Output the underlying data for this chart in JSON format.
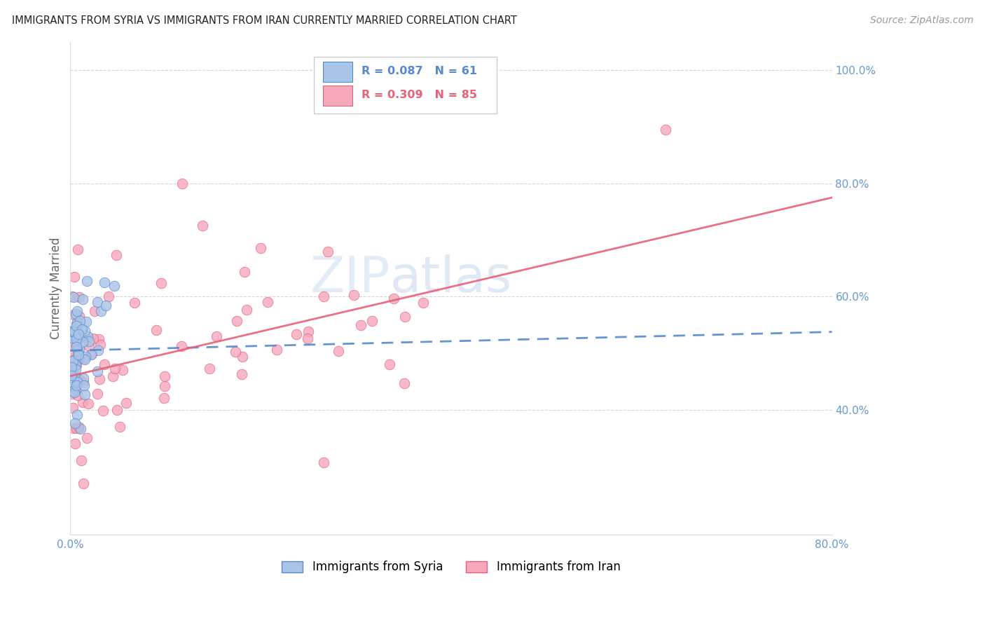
{
  "title": "IMMIGRANTS FROM SYRIA VS IMMIGRANTS FROM IRAN CURRENTLY MARRIED CORRELATION CHART",
  "source": "Source: ZipAtlas.com",
  "ylabel": "Currently Married",
  "x_min": 0.0,
  "x_max": 0.8,
  "y_min": 0.18,
  "y_max": 1.05,
  "y_tick_right": [
    0.4,
    0.6,
    0.8,
    1.0
  ],
  "y_tick_right_labels": [
    "40.0%",
    "60.0%",
    "80.0%",
    "100.0%"
  ],
  "watermark_zip": "ZIP",
  "watermark_atlas": "atlas",
  "legend_syria_r": "R = 0.087",
  "legend_syria_n": "N = 61",
  "legend_iran_r": "R = 0.309",
  "legend_iran_n": "N = 85",
  "syria_color": "#aac4e8",
  "iran_color": "#f5a8bc",
  "syria_line_color": "#5588cc",
  "iran_line_color": "#e8607a",
  "syria_edge_color": "#5588cc",
  "iran_edge_color": "#e8607a",
  "background_color": "#ffffff",
  "grid_color": "#cccccc",
  "title_color": "#222222",
  "axis_color": "#6699cc",
  "syria_trend_start_y": 0.505,
  "syria_trend_end_y": 0.538,
  "iran_trend_start_y": 0.46,
  "iran_trend_end_y": 0.775
}
